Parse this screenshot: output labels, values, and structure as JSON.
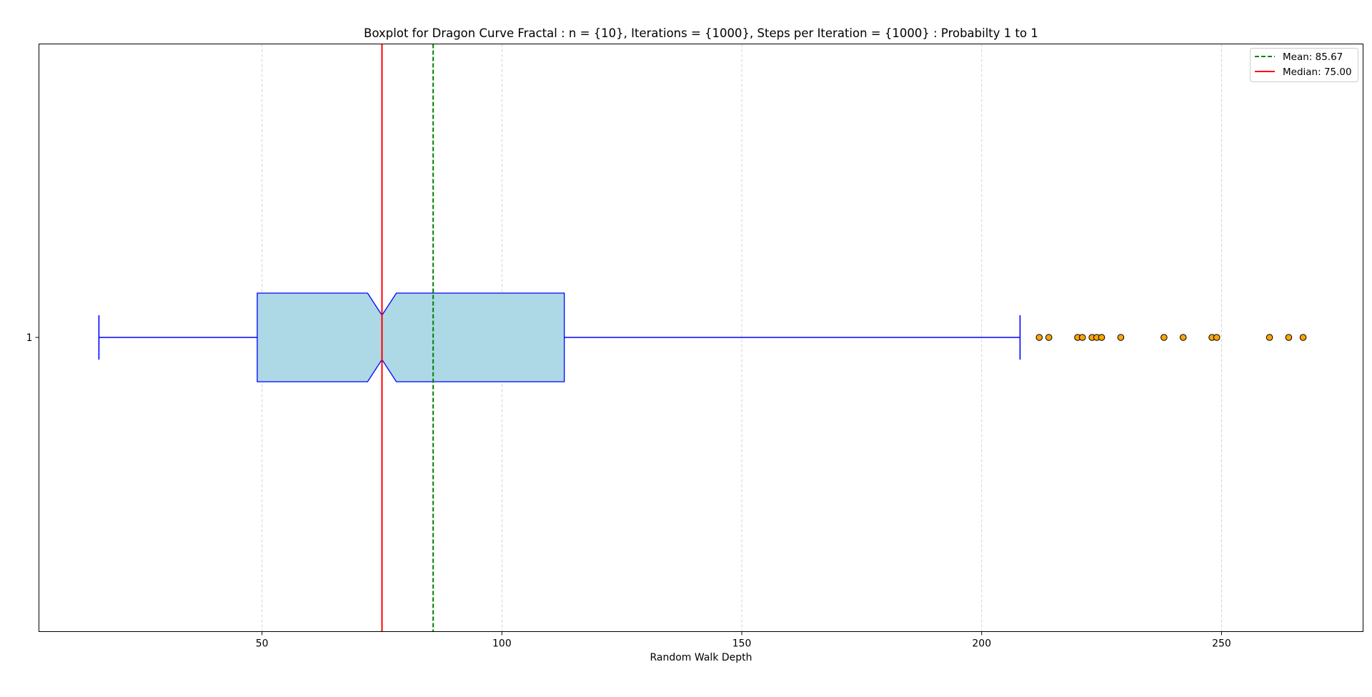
{
  "chart_data": {
    "type": "boxplot",
    "orientation": "horizontal",
    "title": "Boxplot for Dragon Curve Fractal : n = {10}, Iterations = {1000}, Steps per Iteration = {1000} : Probabilty 1 to 1",
    "xlabel": "Random Walk Depth",
    "ylabel": "",
    "xlim": [
      3.5,
      279.5
    ],
    "x_ticks": [
      50,
      100,
      150,
      200,
      250
    ],
    "y_tick_labels": [
      "1"
    ],
    "grid": "vertical dashed",
    "legend_position": "top-right",
    "notched": true,
    "boxes": [
      {
        "label": "1",
        "whisker_low": 16,
        "q1": 49,
        "median": 75,
        "q3": 113,
        "whisker_high": 208,
        "notch_low": 72,
        "notch_high": 78,
        "outliers": [
          212,
          214,
          220,
          221,
          223,
          224,
          225,
          229,
          238,
          242,
          248,
          249,
          260,
          264,
          267
        ]
      }
    ],
    "reference_lines": [
      {
        "name": "Mean: 85.67",
        "value": 85.67,
        "style": "dashed",
        "color": "#008000"
      },
      {
        "name": "Median: 75.00",
        "value": 75.0,
        "style": "solid",
        "color": "#ff0000"
      }
    ],
    "colors": {
      "box_fill": "#add8e6",
      "box_edge": "#0000ff",
      "outlier_fill": "#ffa500",
      "outlier_edge": "#000000",
      "grid": "#b0b0b0"
    }
  }
}
